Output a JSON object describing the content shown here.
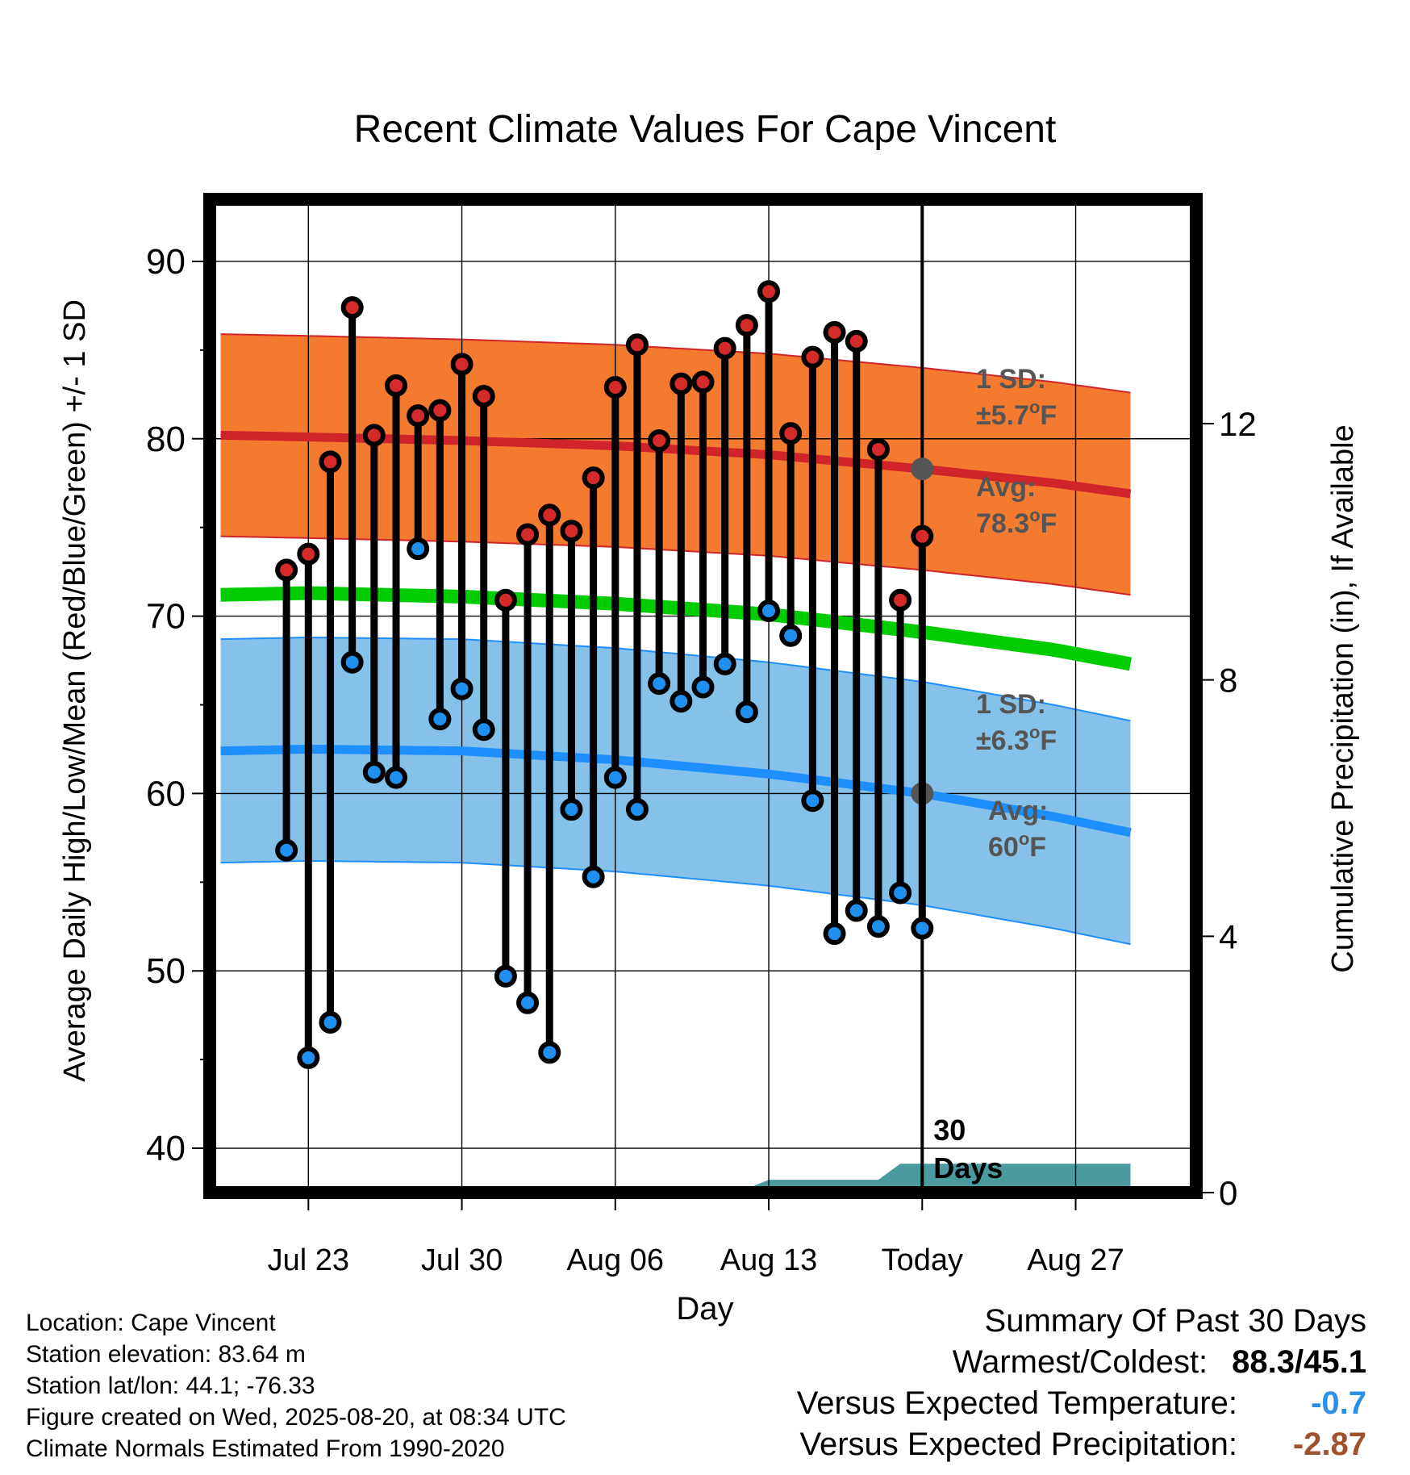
{
  "chart_data": {
    "type": "line",
    "title": "Recent Climate Values For Cape Vincent",
    "xlabel": "Day",
    "ylabel": "Average Daily High/Low/Mean (Red/Blue/Green) +/- 1 SD",
    "y2label": "Cumulative Precipitation (in), If Available",
    "ylim": [
      37.5,
      93.5
    ],
    "y2lim": [
      0,
      15.5
    ],
    "xlim": [
      -32.5,
      12.5
    ],
    "x_tick_labels": [
      {
        "x": -28,
        "label": "Jul 23"
      },
      {
        "x": -21,
        "label": "Jul 30"
      },
      {
        "x": -14,
        "label": "Aug 06"
      },
      {
        "x": -7,
        "label": "Aug 13"
      },
      {
        "x": 0,
        "label": "Today"
      },
      {
        "x": 7,
        "label": "Aug 27"
      }
    ],
    "y_ticks": [
      40,
      50,
      60,
      70,
      80,
      90
    ],
    "y2_ticks": [
      0,
      4,
      8,
      12
    ],
    "grid": true,
    "today_marker": {
      "x": 0,
      "label_line1": "30",
      "label_line2": "Days"
    },
    "normals": {
      "x": [
        -32,
        -28,
        -21,
        -14,
        -7,
        0,
        6,
        9.5
      ],
      "high_avg": [
        80.2,
        80.1,
        79.9,
        79.6,
        79.1,
        78.3,
        77.5,
        76.9
      ],
      "high_sd": 5.7,
      "low_avg": [
        62.4,
        62.5,
        62.4,
        61.9,
        61.1,
        60.0,
        58.7,
        57.8
      ],
      "low_sd": 6.3,
      "mean": [
        71.2,
        71.3,
        71.1,
        70.7,
        70.1,
        69.1,
        68.1,
        67.3
      ]
    },
    "annotations": {
      "high_sd_line1": "1 SD:",
      "high_sd_line2": "±5.7",
      "high_avg_line1": "Avg:",
      "high_avg_line2": "78.3",
      "low_sd_line1": "1 SD:",
      "low_sd_line2": "±6.3",
      "low_avg_line1": "Avg:",
      "low_avg_line2": "60",
      "deg_o": "o",
      "unit_F": "F"
    },
    "series": [
      {
        "name": "High",
        "values": [
          72.6,
          73.5,
          78.7,
          87.4,
          80.2,
          83.0,
          81.3,
          81.6,
          84.2,
          82.4,
          70.9,
          74.6,
          75.7,
          74.8,
          77.8,
          82.9,
          85.3,
          79.9,
          83.1,
          83.2,
          85.1,
          86.4,
          88.3,
          80.3,
          84.6,
          86.0,
          85.5,
          79.4,
          70.9,
          74.5
        ]
      },
      {
        "name": "Low",
        "values": [
          56.8,
          45.1,
          47.1,
          67.4,
          61.2,
          60.9,
          73.8,
          64.2,
          65.9,
          63.6,
          49.7,
          48.2,
          45.4,
          59.1,
          55.3,
          60.9,
          59.1,
          66.2,
          65.2,
          66.0,
          67.3,
          64.6,
          70.3,
          68.9,
          59.6,
          52.1,
          53.4,
          52.5,
          54.4,
          52.4
        ]
      }
    ],
    "day_x": [
      -29,
      -28,
      -27,
      -26,
      -25,
      -24,
      -23,
      -22,
      -21,
      -20,
      -19,
      -18,
      -17,
      -16,
      -15,
      -14,
      -13,
      -12,
      -11,
      -10,
      -9,
      -8,
      -7,
      -6,
      -5,
      -4,
      -3,
      -2,
      -1,
      0
    ],
    "precip": {
      "x": [
        -32,
        -25,
        -24,
        -23,
        -20,
        -10,
        -8,
        -7,
        -2,
        -1,
        9.5
      ],
      "cumulative": [
        0,
        0,
        0.02,
        0.05,
        0.06,
        0.06,
        0.06,
        0.2,
        0.2,
        0.45,
        0.45
      ]
    },
    "colors": {
      "high_band": "#f47a30",
      "high_line": "#d0242b",
      "low_band": "#85c1e8",
      "low_line": "#1e8fff",
      "mean_line": "#00cc00",
      "precip": "#4a9aa0",
      "text_gray": "#555555",
      "high_point": "#d42a2a",
      "low_point": "#2090f0"
    }
  },
  "info": {
    "location": "Location: Cape Vincent",
    "elevation": "Station elevation: 83.64 m",
    "latlon": "Station lat/lon: 44.1; -76.33",
    "created": "Figure created on Wed, 2025-08-20, at 08:34 UTC",
    "normals": "Climate Normals Estimated From 1990-2020"
  },
  "summary": {
    "title": "Summary Of Past 30 Days",
    "warm_label": "Warmest/Coldest:",
    "warm_value": "88.3/45.1",
    "temp_label": "Versus Expected Temperature:",
    "temp_value": "-0.7",
    "temp_color": "#2b8fe8",
    "precip_label": "Versus Expected Precipitation:",
    "precip_value": "-2.87",
    "precip_color": "#a0522d"
  }
}
